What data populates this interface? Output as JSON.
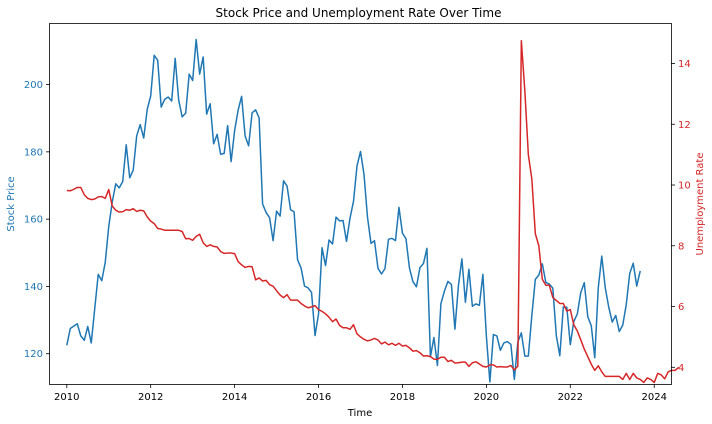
{
  "chart_data": {
    "type": "line",
    "title": "Stock Price and Unemployment Rate Over Time",
    "xlabel": "Time",
    "ylabel_left": "Stock Price",
    "ylabel_right": "Unemployment Rate",
    "xlim": [
      2009.6,
      2024.4
    ],
    "ylim_left": [
      111,
      218
    ],
    "ylim_right": [
      3.45,
      15.3
    ],
    "x_ticks": [
      2010,
      2012,
      2014,
      2016,
      2018,
      2020,
      2022,
      2024
    ],
    "y_ticks_left": [
      120,
      140,
      160,
      180,
      200
    ],
    "y_ticks_right": [
      4,
      6,
      8,
      10,
      12,
      14
    ],
    "grid": false,
    "colors": {
      "left": "#1f77b4",
      "right": "#d62728"
    },
    "series": [
      {
        "name": "Stock Price",
        "axis": "left",
        "color": "#1f77b4",
        "start": 2010.0,
        "step": 0.0833333,
        "values": [
          122.5,
          127.5,
          128.2,
          128.9,
          125.3,
          124,
          128.1,
          123.2,
          133.5,
          143.6,
          141.7,
          147.2,
          157.8,
          165.1,
          170.5,
          169.3,
          171.2,
          182.1,
          172.3,
          174.6,
          184.8,
          188.1,
          184.1,
          192.6,
          196.6,
          208.7,
          207.2,
          193.3,
          195.6,
          196.3,
          195.1,
          207.8,
          195.4,
          190.4,
          191.5,
          203.1,
          201.2,
          213.4,
          203.1,
          208.2,
          191.2,
          194.3,
          182.4,
          185.2,
          179.3,
          179.5,
          187.8,
          177.1,
          186.3,
          192.4,
          196.5,
          184.7,
          181.8,
          191.6,
          192.5,
          190.1,
          164.5,
          162,
          160.4,
          153.6,
          162.4,
          160.9,
          171.4,
          169.8,
          162.8,
          162.2,
          147.9,
          145.5,
          140.1,
          139.6,
          138.2,
          125.4,
          131.8,
          151.5,
          146.2,
          153.8,
          152.6,
          160.6,
          159.5,
          159.6,
          153.4,
          160.3,
          165.3,
          175.8,
          180.1,
          173.3,
          160.6,
          152.8,
          153.6,
          145.4,
          143.7,
          145.3,
          154,
          154.3,
          153.6,
          163.5,
          155.8,
          154.2,
          145.5,
          141.4,
          139.9,
          145.6,
          146.8,
          151.3,
          119.1,
          124.8,
          116.5,
          134.9,
          138.6,
          141.5,
          140.6,
          127.3,
          140.2,
          148.2,
          135.3,
          145.1,
          134.1,
          134.8,
          134.4,
          143.6,
          125.2,
          111.6,
          125.7,
          125.3,
          121,
          123.2,
          123.6,
          122.8,
          112.4,
          123.5,
          126.2,
          119.3,
          119.3,
          131.3,
          142.1,
          143.4,
          146.7,
          141.2,
          140.7,
          139.5,
          125.4,
          119.4,
          133.9,
          133.8,
          122.7,
          129.6,
          131.8,
          138.2,
          141.1,
          131,
          128.3,
          118.8,
          139.6,
          149,
          139.6,
          133.8,
          129.4,
          131.4,
          126.6,
          128.5,
          134.6,
          143.9,
          146.9,
          140.1,
          144.6
        ]
      },
      {
        "name": "Unemployment Rate",
        "axis": "right",
        "color": "#d62728",
        "start": 2010.0,
        "step": 0.0833333,
        "values": [
          9.82,
          9.81,
          9.86,
          9.92,
          9.92,
          9.68,
          9.56,
          9.52,
          9.54,
          9.61,
          9.62,
          9.56,
          9.85,
          9.31,
          9.17,
          9.11,
          9.12,
          9.19,
          9.17,
          9.22,
          9.13,
          9.17,
          9.15,
          8.95,
          8.81,
          8.73,
          8.57,
          8.55,
          8.51,
          8.51,
          8.51,
          8.51,
          8.51,
          8.47,
          8.23,
          8.24,
          8.18,
          8.31,
          8.38,
          8.1,
          7.98,
          8.03,
          7.98,
          7.96,
          7.81,
          7.75,
          7.76,
          7.76,
          7.74,
          7.48,
          7.37,
          7.29,
          7.32,
          7.31,
          6.88,
          6.94,
          6.84,
          6.86,
          6.72,
          6.67,
          6.52,
          6.38,
          6.29,
          6.39,
          6.21,
          6.21,
          6.21,
          6.1,
          6.02,
          5.96,
          5.99,
          6.03,
          5.9,
          5.84,
          5.76,
          5.65,
          5.5,
          5.59,
          5.38,
          5.3,
          5.3,
          5.25,
          5.4,
          5.1,
          5,
          4.92,
          4.87,
          4.9,
          4.95,
          4.9,
          4.77,
          4.83,
          4.74,
          4.79,
          4.72,
          4.79,
          4.7,
          4.72,
          4.64,
          4.53,
          4.55,
          4.48,
          4.37,
          4.38,
          4.35,
          4.27,
          4.26,
          4.33,
          4.33,
          4.19,
          4.23,
          4.14,
          4.15,
          4.17,
          4.17,
          4.03,
          4.15,
          4.18,
          4.11,
          4.03,
          4.01,
          4.08,
          4.08,
          4.01,
          4.02,
          4.01,
          4.01,
          4.06,
          3.91,
          4.04,
          14.75,
          13.1,
          11,
          10.2,
          8.4,
          8,
          6.9,
          6.7,
          6.7,
          6.3,
          6.2,
          6.1,
          6.1,
          5.85,
          5.9,
          5.4,
          5.2,
          4.9,
          4.6,
          4.35,
          4.1,
          3.9,
          4.05,
          3.85,
          3.7,
          3.7,
          3.7,
          3.7,
          3.7,
          3.6,
          3.8,
          3.6,
          3.8,
          3.65,
          3.6,
          3.5,
          3.65,
          3.6,
          3.5,
          3.8,
          3.75,
          3.62,
          3.85,
          3.9,
          3.9,
          4.0
        ]
      }
    ]
  }
}
